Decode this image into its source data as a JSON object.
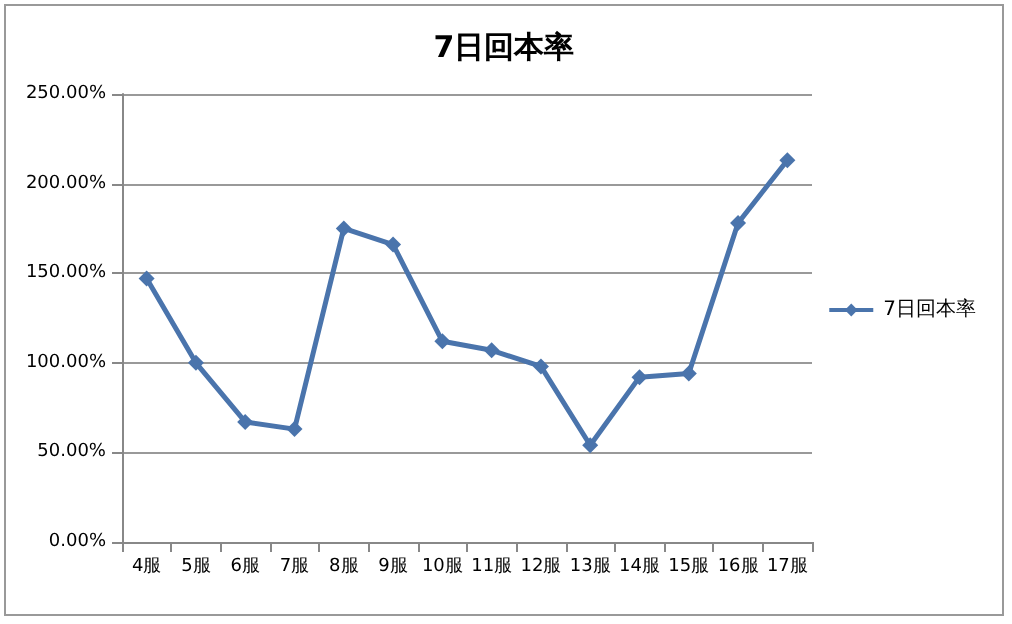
{
  "chart_data": {
    "type": "line",
    "title": "7日回本率",
    "categories": [
      "4服",
      "5服",
      "6服",
      "7服",
      "8服",
      "9服",
      "10服",
      "11服",
      "12服",
      "13服",
      "14服",
      "15服",
      "16服",
      "17服"
    ],
    "series": [
      {
        "name": "7日回本率",
        "color": "#4a74ac",
        "values": [
          147,
          100,
          67,
          63,
          175,
          166,
          112,
          107,
          98,
          54,
          92,
          94,
          178,
          213
        ]
      }
    ],
    "ylim": [
      0,
      250
    ],
    "yticks": [
      {
        "value": 0,
        "label": "0.00%"
      },
      {
        "value": 50,
        "label": "50.00%"
      },
      {
        "value": 100,
        "label": "100.00%"
      },
      {
        "value": 150,
        "label": "150.00%"
      },
      {
        "value": 200,
        "label": "200.00%"
      },
      {
        "value": 250,
        "label": "250.00%"
      }
    ],
    "grid": "y",
    "legend": "right",
    "marker": "diamond",
    "line_style": "solid"
  }
}
